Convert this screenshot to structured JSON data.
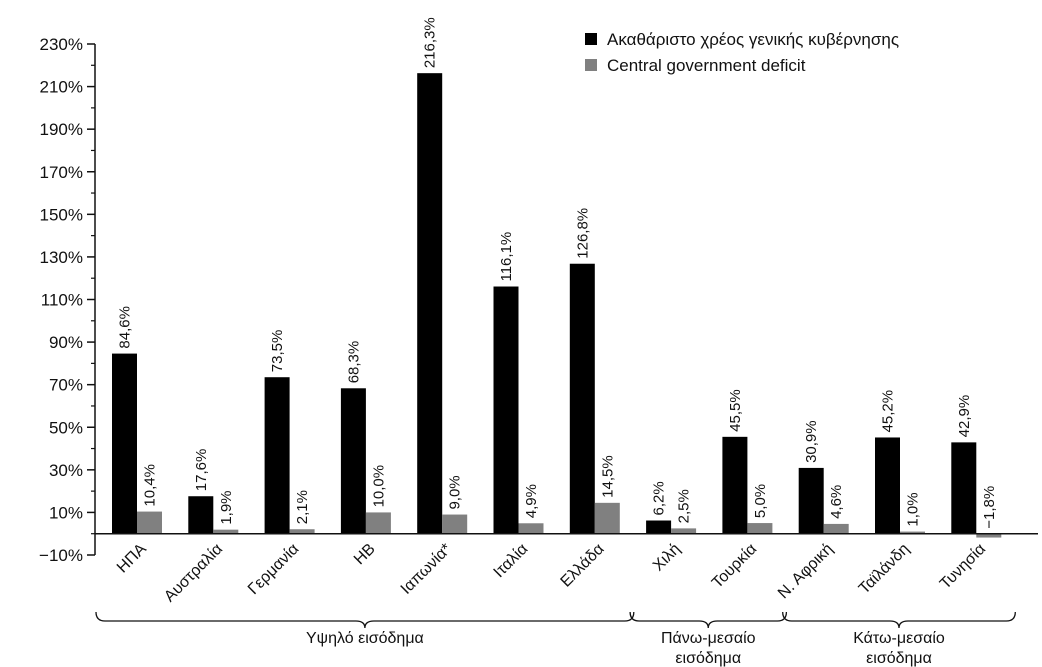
{
  "chart_data": {
    "type": "bar",
    "categories": [
      "ΗΠΑ",
      "Αυστραλία",
      "Γερμανία",
      "ΗΒ",
      "Ιαπωνία*",
      "Ιταλία",
      "Ελλάδα",
      "Χιλή",
      "Τουρκία",
      "Ν. Αφρική",
      "Ταϊλάνδη",
      "Τυνησία"
    ],
    "series": [
      {
        "name": "Ακαθάριστο χρέος γενικής κυβέρνησης",
        "color": "#000000",
        "values": [
          84.6,
          17.6,
          73.5,
          68.3,
          216.3,
          116.1,
          126.8,
          6.2,
          45.5,
          30.9,
          45.2,
          42.9
        ],
        "labels": [
          "84,6%",
          "17,6%",
          "73,5%",
          "68,3%",
          "216,3%",
          "116,1%",
          "126,8%",
          "6,2%",
          "45,5%",
          "30,9%",
          "45,2%",
          "42,9%"
        ]
      },
      {
        "name": "Central government deficit",
        "color": "#808080",
        "values": [
          10.4,
          1.9,
          2.1,
          10.0,
          9.0,
          4.9,
          14.5,
          2.5,
          5.0,
          4.6,
          1.0,
          -1.8
        ],
        "labels": [
          "10,4%",
          "1,9%",
          "2,1%",
          "10,0%",
          "9,0%",
          "4,9%",
          "14,5%",
          "2,5%",
          "5,0%",
          "4,6%",
          "1,0%",
          "−1,8%"
        ]
      }
    ],
    "ylim": [
      -10,
      230
    ],
    "yticks": [
      -10,
      10,
      30,
      50,
      70,
      90,
      110,
      130,
      150,
      170,
      190,
      210,
      230
    ],
    "ytick_labels": [
      "−10%",
      "10%",
      "30%",
      "50%",
      "70%",
      "90%",
      "110%",
      "130%",
      "150%",
      "170%",
      "190%",
      "210%",
      "230%"
    ],
    "groups": [
      {
        "label_lines": [
          "Υψηλό εισόδημα"
        ],
        "from": 0,
        "to": 6
      },
      {
        "label_lines": [
          "Πάνω-μεσαίο",
          "εισόδημα"
        ],
        "from": 7,
        "to": 8
      },
      {
        "label_lines": [
          "Κάτω-μεσαίο",
          "εισόδημα"
        ],
        "from": 9,
        "to": 11
      }
    ],
    "legend_position": "top-right",
    "grid": false
  }
}
